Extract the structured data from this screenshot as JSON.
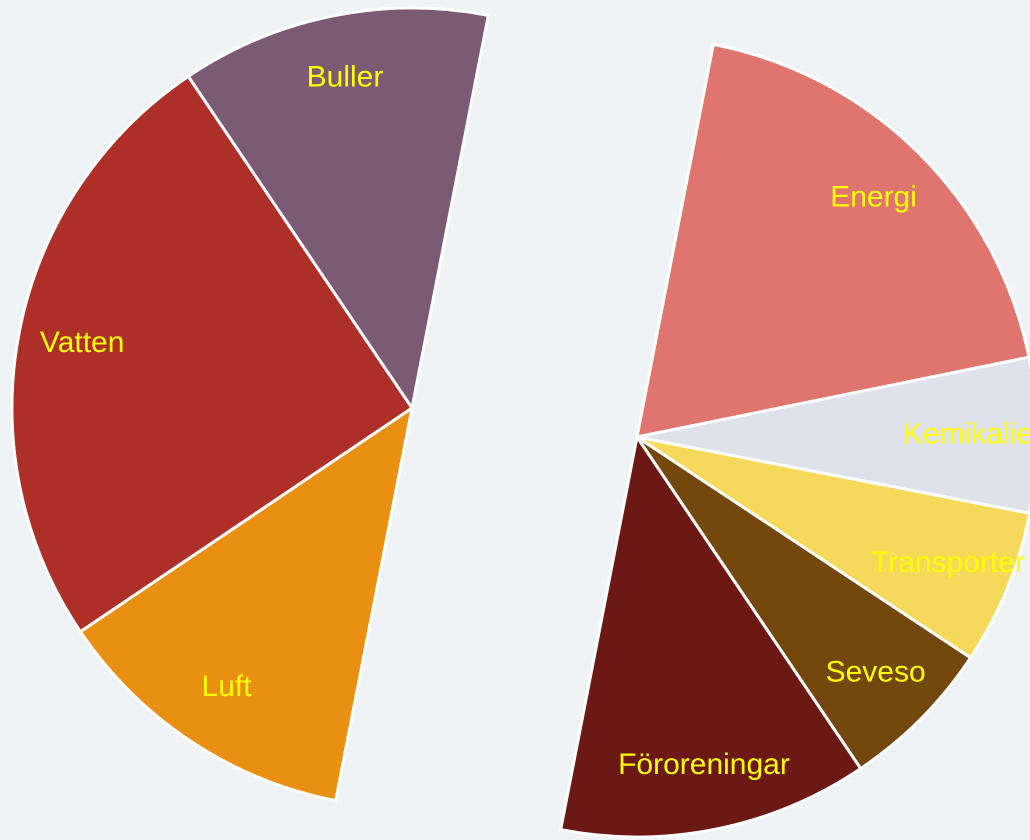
{
  "chart_data": {
    "type": "pie",
    "start_angle": 11,
    "categories": [
      "Energi",
      "Kemikalier",
      "Transporter",
      "Seveso",
      "Föroreningar",
      "Luft",
      "Vatten",
      "Buller"
    ],
    "values": [
      3,
      1,
      1,
      1,
      2,
      2,
      4,
      2
    ],
    "colors": [
      "#e07570",
      "#dfe2ea",
      "#f4d95a",
      "#74470d",
      "#6c1814",
      "#e99013",
      "#ae2e28",
      "#7b5a73"
    ],
    "label_color": "#ffff00"
  }
}
